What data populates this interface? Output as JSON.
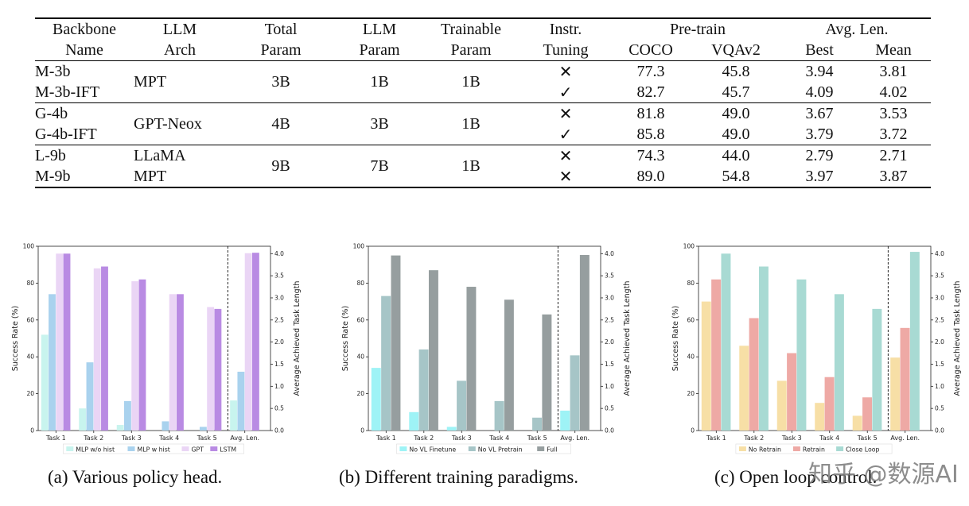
{
  "table": {
    "headers": {
      "backbone_1": "Backbone",
      "backbone_2": "Name",
      "arch_1": "LLM",
      "arch_2": "Arch",
      "total_1": "Total",
      "total_2": "Param",
      "llmp_1": "LLM",
      "llmp_2": "Param",
      "train_1": "Trainable",
      "train_2": "Param",
      "instr_1": "Instr.",
      "instr_2": "Tuning",
      "pretrain": "Pre-train",
      "coco": "COCO",
      "vqa": "VQAv2",
      "avglen": "Avg. Len.",
      "best": "Best",
      "mean": "Mean"
    },
    "rows": [
      {
        "name": "M-3b",
        "arch": "MPT",
        "total": "3B",
        "llm": "1B",
        "trainable": "1B",
        "instr": "✕",
        "coco": "77.3",
        "vqa": "45.8",
        "best": "3.94",
        "mean": "3.81"
      },
      {
        "name": "M-3b-IFT",
        "instr": "✓",
        "coco": "82.7",
        "vqa": "45.7",
        "best": "4.09",
        "mean": "4.02"
      },
      {
        "name": "G-4b",
        "arch": "GPT-Neox",
        "total": "4B",
        "llm": "3B",
        "trainable": "1B",
        "instr": "✕",
        "coco": "81.8",
        "vqa": "49.0",
        "best": "3.67",
        "mean": "3.53"
      },
      {
        "name": "G-4b-IFT",
        "instr": "✓",
        "coco": "85.8",
        "vqa": "49.0",
        "best": "3.79",
        "mean": "3.72"
      },
      {
        "name": "L-9b",
        "arch": "LLaMA",
        "total": "9B",
        "llm": "7B",
        "trainable": "1B",
        "instr": "✕",
        "coco": "74.3",
        "vqa": "44.0",
        "best": "2.79",
        "mean": "2.71"
      },
      {
        "name": "M-9b",
        "arch": "MPT",
        "instr": "✕",
        "coco": "89.0",
        "vqa": "54.8",
        "best": "3.97",
        "mean": "3.87"
      }
    ]
  },
  "chart_data": [
    {
      "type": "bar",
      "categories": [
        "Task 1",
        "Task 2",
        "Task 3",
        "Task 4",
        "Task 5",
        "Avg. Len."
      ],
      "series": [
        {
          "name": "MLP w/o hist",
          "color": "#c8f4ee",
          "values": [
            52,
            12,
            3,
            0,
            0,
            0.68
          ]
        },
        {
          "name": "MLP w hist",
          "color": "#a9d2ee",
          "values": [
            74,
            37,
            16,
            5,
            2,
            1.33
          ]
        },
        {
          "name": "GPT",
          "color": "#ead5f5",
          "values": [
            96,
            88,
            81,
            74,
            67,
            4.01
          ]
        },
        {
          "name": "LSTM",
          "color": "#b98be3",
          "values": [
            96,
            89,
            82,
            74,
            66,
            4.02
          ]
        }
      ],
      "xlabel": "",
      "ylabel": "Success Rate (%)",
      "y2label": "Average Achieved Task Length",
      "ylim": [
        0,
        100
      ],
      "y2lim": [
        0,
        4.167
      ],
      "yticks": [
        "0",
        "20",
        "40",
        "60",
        "80",
        "100"
      ],
      "y2ticks": [
        "0.0",
        "0.5",
        "1.0",
        "1.5",
        "2.0",
        "2.5",
        "3.0",
        "3.5",
        "4.0"
      ],
      "legend": "bottom"
    },
    {
      "type": "bar",
      "categories": [
        "Task 1",
        "Task 2",
        "Task 3",
        "Task 4",
        "Task 5",
        "Avg. Len."
      ],
      "series": [
        {
          "name": "No VL Finetune",
          "color": "#9ef3f6",
          "values": [
            34,
            10,
            2,
            0,
            0,
            0.45
          ]
        },
        {
          "name": "No VL Pretrain",
          "color": "#a6c5c7",
          "values": [
            73,
            44,
            27,
            16,
            7,
            1.7
          ]
        },
        {
          "name": "Full",
          "color": "#969e9f",
          "values": [
            95,
            87,
            78,
            71,
            63,
            3.97
          ]
        }
      ],
      "xlabel": "",
      "ylabel": "Success Rate (%)",
      "y2label": "Average Achieved Task Length",
      "ylim": [
        0,
        100
      ],
      "y2lim": [
        0,
        4.167
      ],
      "yticks": [
        "0",
        "20",
        "40",
        "60",
        "80",
        "100"
      ],
      "y2ticks": [
        "0.0",
        "0.5",
        "1.0",
        "1.5",
        "2.0",
        "2.5",
        "3.0",
        "3.5",
        "4.0"
      ],
      "legend": "bottom"
    },
    {
      "type": "bar",
      "categories": [
        "Task 1",
        "Task 2",
        "Task 3",
        "Task 4",
        "Task 5",
        "Avg. Len."
      ],
      "series": [
        {
          "name": "No Retrain",
          "color": "#f7dfa6",
          "values": [
            70,
            46,
            27,
            15,
            8,
            1.65
          ]
        },
        {
          "name": "Retrain",
          "color": "#eea9a5",
          "values": [
            82,
            61,
            42,
            29,
            18,
            2.32
          ]
        },
        {
          "name": "Close Loop",
          "color": "#a8dad3",
          "values": [
            96,
            89,
            82,
            74,
            66,
            4.04
          ]
        }
      ],
      "xlabel": "",
      "ylabel": "Success Rate (%)",
      "y2label": "Average Achieved Task Length",
      "ylim": [
        0,
        100
      ],
      "y2lim": [
        0,
        4.167
      ],
      "yticks": [
        "0",
        "20",
        "40",
        "60",
        "80",
        "100"
      ],
      "y2ticks": [
        "0.0",
        "0.5",
        "1.0",
        "1.5",
        "2.0",
        "2.5",
        "3.0",
        "3.5",
        "4.0"
      ],
      "legend": "bottom"
    }
  ],
  "captions": [
    "(a) Various policy head.",
    "(b) Different training paradigms.",
    "(c) Open loop control."
  ],
  "watermark": "知乎 @数源AI"
}
